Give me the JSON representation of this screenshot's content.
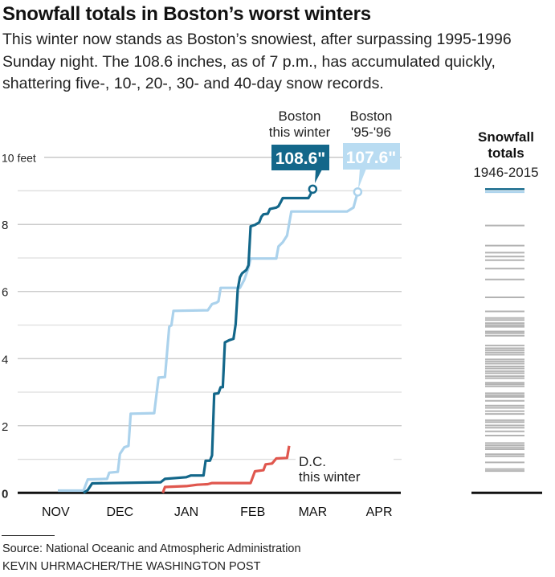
{
  "title": "Snowfall totals in Boston’s worst winters",
  "subtitle": "This winter now stands as Boston’s snowiest, after surpassing 1995-1996 Sunday night. The 108.6 inches, as of 7 p.m., has accumulated quickly, shattering five-, 10-, 20-, 30- and 40-day snow records.",
  "footer": {
    "source": "Source: National Oceanic and Atmospheric Administration",
    "credit": "KEVIN UHRMACHER/THE WASHINGTON POST"
  },
  "chart_data": [
    {
      "type": "line",
      "y_unit": "inches",
      "ylim": [
        0,
        120
      ],
      "y_ticks": [
        {
          "value": 120,
          "label": "10 feet"
        },
        {
          "value": 96,
          "label": "8"
        },
        {
          "value": 72,
          "label": "6"
        },
        {
          "value": 48,
          "label": "4"
        },
        {
          "value": 24,
          "label": "2"
        },
        {
          "value": 0,
          "label": "0"
        }
      ],
      "x_ticks": [
        {
          "date": "11-15",
          "label": "NOV"
        },
        {
          "date": "12-15",
          "label": "DEC"
        },
        {
          "date": "01-15",
          "label": "JAN"
        },
        {
          "date": "02-15",
          "label": "FEB"
        },
        {
          "date": "03-15",
          "label": "MAR"
        },
        {
          "date": "04-15",
          "label": "APR"
        }
      ],
      "grid": true,
      "series": [
        {
          "name": "Boston '95-'96",
          "label_lines": [
            "Boston",
            "'95-'96"
          ],
          "end_label": "107.6\"",
          "color": "#abd2ec",
          "points": [
            [
              "11-16",
              0.8
            ],
            [
              "11-28",
              0.8
            ],
            [
              "11-30",
              4.8
            ],
            [
              "12-09",
              5.0
            ],
            [
              "12-10",
              7.2
            ],
            [
              "12-14",
              7.5
            ],
            [
              "12-15",
              13.9
            ],
            [
              "12-17",
              16.3
            ],
            [
              "12-19",
              16.8
            ],
            [
              "12-20",
              28.3
            ],
            [
              "12-31",
              28.5
            ],
            [
              "01-02",
              41.2
            ],
            [
              "01-05",
              41.4
            ],
            [
              "01-07",
              59.4
            ],
            [
              "01-08",
              59.9
            ],
            [
              "01-09",
              65.1
            ],
            [
              "01-25",
              65.3
            ],
            [
              "01-27",
              67.5
            ],
            [
              "01-29",
              68.0
            ],
            [
              "01-30",
              68.5
            ],
            [
              "01-31",
              73.3
            ],
            [
              "02-09",
              73.3
            ],
            [
              "02-11",
              76.1
            ],
            [
              "02-13",
              80.5
            ],
            [
              "02-14",
              83.8
            ],
            [
              "02-26",
              83.8
            ],
            [
              "02-27",
              88.1
            ],
            [
              "03-01",
              89.6
            ],
            [
              "03-03",
              92.0
            ],
            [
              "03-05",
              100.6
            ],
            [
              "03-31",
              100.6
            ],
            [
              "04-03",
              102.0
            ],
            [
              "04-05",
              107.6
            ]
          ]
        },
        {
          "name": "D.C. this winter",
          "label_lines": [
            "D.C.",
            "this winter"
          ],
          "color": "#e0574e",
          "points": [
            [
              "01-04",
              0
            ],
            [
              "01-05",
              2.1
            ],
            [
              "01-15",
              2.4
            ],
            [
              "01-20",
              2.9
            ],
            [
              "01-25",
              3.1
            ],
            [
              "01-27",
              3.5
            ],
            [
              "02-14",
              3.5
            ],
            [
              "02-16",
              7.7
            ],
            [
              "02-20",
              8.1
            ],
            [
              "02-21",
              10.2
            ],
            [
              "02-24",
              10.5
            ],
            [
              "02-26",
              12.3
            ],
            [
              "03-03",
              12.5
            ],
            [
              "03-04",
              16.8
            ]
          ]
        },
        {
          "name": "Boston this winter",
          "label_lines": [
            "Boston",
            "this winter"
          ],
          "end_label": "108.6\"",
          "color": "#13678a",
          "points": [
            [
              "11-28",
              0
            ],
            [
              "11-30",
              1.0
            ],
            [
              "12-02",
              3.4
            ],
            [
              "01-03",
              3.8
            ],
            [
              "01-05",
              5.0
            ],
            [
              "01-15",
              5.6
            ],
            [
              "01-17",
              6.2
            ],
            [
              "01-23",
              6.2
            ],
            [
              "01-24",
              11.5
            ],
            [
              "01-26",
              11.5
            ],
            [
              "01-27",
              13.4
            ],
            [
              "01-28",
              35.4
            ],
            [
              "01-30",
              35.6
            ],
            [
              "01-31",
              37.8
            ],
            [
              "02-01",
              37.8
            ],
            [
              "02-02",
              53.8
            ],
            [
              "02-04",
              54.6
            ],
            [
              "02-06",
              55.1
            ],
            [
              "02-07",
              60.3
            ],
            [
              "02-08",
              72.8
            ],
            [
              "02-09",
              77.1
            ],
            [
              "02-10",
              78.5
            ],
            [
              "02-12",
              79.7
            ],
            [
              "02-13",
              81.4
            ],
            [
              "02-14",
              95.3
            ],
            [
              "02-16",
              95.8
            ],
            [
              "02-18",
              96.7
            ],
            [
              "02-19",
              98.7
            ],
            [
              "02-20",
              99.6
            ],
            [
              "02-22",
              99.8
            ],
            [
              "02-23",
              101.5
            ],
            [
              "02-26",
              102.0
            ],
            [
              "02-27",
              102.5
            ],
            [
              "02-28",
              103.9
            ],
            [
              "03-01",
              105.4
            ],
            [
              "03-13",
              105.4
            ],
            [
              "03-14",
              106.8
            ],
            [
              "03-15",
              108.6
            ]
          ]
        }
      ]
    },
    {
      "type": "strip",
      "title_lines": [
        "Snowfall",
        "totals"
      ],
      "subtitle": "1946-2015",
      "y_unit": "inches",
      "ylim": [
        0,
        120
      ],
      "highlight": [
        {
          "value": 108.6,
          "color": "#13678a"
        },
        {
          "value": 107.6,
          "color": "#abd2ec"
        }
      ],
      "other_color": "#b3b3b3",
      "values": [
        95.6,
        88.4,
        85.9,
        84.5,
        83.2,
        80.2,
        76.3,
        69.9,
        64.9,
        62.5,
        61.8,
        60.7,
        60.0,
        59.4,
        57.7,
        57.1,
        56.2,
        52.7,
        51.7,
        51.0,
        50.2,
        49.4,
        47.7,
        47.0,
        46.2,
        45.2,
        44.5,
        43.5,
        42.8,
        41.7,
        41.0,
        39.4,
        38.8,
        38.1,
        35.6,
        34.9,
        34.3,
        32.9,
        31.2,
        30.4,
        29.2,
        28.2,
        26.0,
        25.3,
        24.1,
        23.3,
        22.0,
        20.5,
        17.8,
        17.0,
        16.3,
        15.6,
        13.8,
        13.1,
        10.9,
        8.5,
        7.8
      ]
    }
  ]
}
